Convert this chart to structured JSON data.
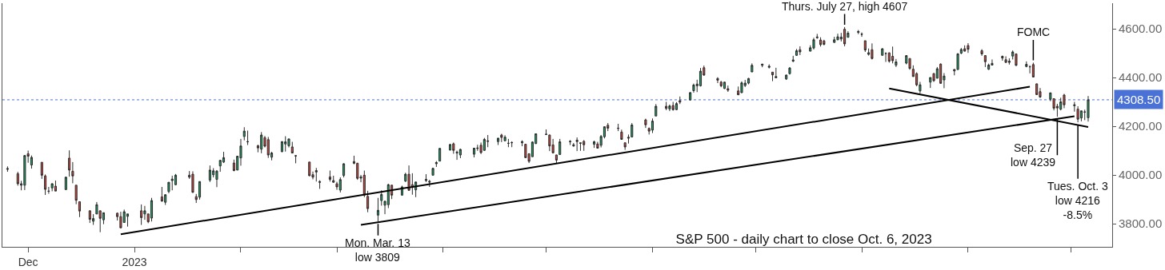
{
  "chart_data": {
    "type": "candlestick",
    "title": "S&P 500 - daily chart to close Oct. 6, 2023",
    "x": [
      "2022-11-25",
      "2022-11-28",
      "2022-11-29",
      "2022-11-30",
      "2022-12-01",
      "2022-12-02",
      "2022-12-05",
      "2022-12-06",
      "2022-12-07",
      "2022-12-08",
      "2022-12-09",
      "2022-12-12",
      "2022-12-13",
      "2022-12-14",
      "2022-12-15",
      "2022-12-16",
      "2022-12-19",
      "2022-12-20",
      "2022-12-21",
      "2022-12-22",
      "2022-12-23",
      "2022-12-27",
      "2022-12-28",
      "2022-12-29",
      "2022-12-30",
      "2023-01-03",
      "2023-01-04",
      "2023-01-05",
      "2023-01-06",
      "2023-01-09",
      "2023-01-10",
      "2023-01-11",
      "2023-01-12",
      "2023-01-13",
      "2023-01-17",
      "2023-01-18",
      "2023-01-19",
      "2023-01-20",
      "2023-01-23",
      "2023-01-24",
      "2023-01-25",
      "2023-01-26",
      "2023-01-27",
      "2023-01-30",
      "2023-01-31",
      "2023-02-01",
      "2023-02-02",
      "2023-02-03",
      "2023-02-06",
      "2023-02-07",
      "2023-02-08",
      "2023-02-09",
      "2023-02-10",
      "2023-02-13",
      "2023-02-14",
      "2023-02-15",
      "2023-02-16",
      "2023-02-17",
      "2023-02-21",
      "2023-02-22",
      "2023-02-23",
      "2023-02-24",
      "2023-02-27",
      "2023-02-28",
      "2023-03-01",
      "2023-03-02",
      "2023-03-03",
      "2023-03-06",
      "2023-03-07",
      "2023-03-08",
      "2023-03-09",
      "2023-03-10",
      "2023-03-13",
      "2023-03-14",
      "2023-03-15",
      "2023-03-16",
      "2023-03-17",
      "2023-03-20",
      "2023-03-21",
      "2023-03-22",
      "2023-03-23",
      "2023-03-24",
      "2023-03-27",
      "2023-03-28",
      "2023-03-29",
      "2023-03-30",
      "2023-03-31",
      "2023-04-03",
      "2023-04-04",
      "2023-04-05",
      "2023-04-06",
      "2023-04-10",
      "2023-04-11",
      "2023-04-12",
      "2023-04-13",
      "2023-04-14",
      "2023-04-17",
      "2023-04-18",
      "2023-04-19",
      "2023-04-20",
      "2023-04-21",
      "2023-04-24",
      "2023-04-25",
      "2023-04-26",
      "2023-04-27",
      "2023-04-28",
      "2023-05-01",
      "2023-05-02",
      "2023-05-03",
      "2023-05-04",
      "2023-05-05",
      "2023-05-08",
      "2023-05-09",
      "2023-05-10",
      "2023-05-11",
      "2023-05-12",
      "2023-05-15",
      "2023-05-16",
      "2023-05-17",
      "2023-05-18",
      "2023-05-19",
      "2023-05-22",
      "2023-05-23",
      "2023-05-24",
      "2023-05-25",
      "2023-05-26",
      "2023-05-30",
      "2023-05-31",
      "2023-06-01",
      "2023-06-02",
      "2023-06-05",
      "2023-06-06",
      "2023-06-07",
      "2023-06-08",
      "2023-06-09",
      "2023-06-12",
      "2023-06-13",
      "2023-06-14",
      "2023-06-15",
      "2023-06-16",
      "2023-06-20",
      "2023-06-21",
      "2023-06-22",
      "2023-06-23",
      "2023-06-26",
      "2023-06-27",
      "2023-06-28",
      "2023-06-29",
      "2023-06-30",
      "2023-07-03",
      "2023-07-05",
      "2023-07-06",
      "2023-07-07",
      "2023-07-10",
      "2023-07-11",
      "2023-07-12",
      "2023-07-13",
      "2023-07-14",
      "2023-07-17",
      "2023-07-18",
      "2023-07-19",
      "2023-07-20",
      "2023-07-21",
      "2023-07-24",
      "2023-07-25",
      "2023-07-26",
      "2023-07-27",
      "2023-07-28",
      "2023-07-31",
      "2023-08-01",
      "2023-08-02",
      "2023-08-03",
      "2023-08-04",
      "2023-08-07",
      "2023-08-08",
      "2023-08-09",
      "2023-08-10",
      "2023-08-11",
      "2023-08-14",
      "2023-08-15",
      "2023-08-16",
      "2023-08-17",
      "2023-08-18",
      "2023-08-21",
      "2023-08-22",
      "2023-08-23",
      "2023-08-24",
      "2023-08-25",
      "2023-08-28",
      "2023-08-29",
      "2023-08-30",
      "2023-08-31",
      "2023-09-01",
      "2023-09-05",
      "2023-09-06",
      "2023-09-07",
      "2023-09-08",
      "2023-09-11",
      "2023-09-12",
      "2023-09-13",
      "2023-09-14",
      "2023-09-15",
      "2023-09-18",
      "2023-09-19",
      "2023-09-20",
      "2023-09-21",
      "2023-09-22",
      "2023-09-25",
      "2023-09-26",
      "2023-09-27",
      "2023-09-28",
      "2023-09-29",
      "2023-10-02",
      "2023-10-03",
      "2023-10-04",
      "2023-10-05",
      "2023-10-06"
    ],
    "ohlc": [
      [
        4023,
        4035,
        4013,
        4026
      ],
      [
        4005,
        4013,
        3956,
        3964
      ],
      [
        3964,
        3976,
        3937,
        3958
      ],
      [
        3958,
        4080,
        3938,
        4080
      ],
      [
        4087,
        4100,
        4050,
        4077
      ],
      [
        4041,
        4080,
        4026,
        4072
      ],
      [
        4052,
        4052,
        3984,
        3999
      ],
      [
        3996,
        4002,
        3918,
        3941
      ],
      [
        3934,
        3951,
        3923,
        3933
      ],
      [
        3947,
        3966,
        3933,
        3964
      ],
      [
        3954,
        3977,
        3934,
        3934
      ],
      [
        3940,
        3991,
        3939,
        3991
      ],
      [
        4069,
        4101,
        3993,
        4020
      ],
      [
        4015,
        4053,
        3966,
        3996
      ],
      [
        3958,
        3958,
        3880,
        3896
      ],
      [
        3890,
        3890,
        3827,
        3852
      ],
      [
        3853,
        3854,
        3803,
        3818
      ],
      [
        3810,
        3839,
        3795,
        3821
      ],
      [
        3840,
        3889,
        3839,
        3878
      ],
      [
        3853,
        3853,
        3765,
        3822
      ],
      [
        3816,
        3845,
        3798,
        3845
      ],
      [
        3843,
        3846,
        3813,
        3829
      ],
      [
        3829,
        3849,
        3783,
        3783
      ],
      [
        3805,
        3858,
        3805,
        3849
      ],
      [
        3830,
        3840,
        3788,
        3840
      ],
      [
        3853,
        3879,
        3795,
        3825
      ],
      [
        3840,
        3873,
        3816,
        3853
      ],
      [
        3840,
        3840,
        3802,
        3808
      ],
      [
        3823,
        3906,
        3809,
        3895
      ],
      [
        3910,
        3951,
        3890,
        3893
      ],
      [
        3888,
        3920,
        3877,
        3919
      ],
      [
        3932,
        3970,
        3925,
        3970
      ],
      [
        3977,
        3997,
        3937,
        3983
      ],
      [
        3960,
        4004,
        3958,
        3999
      ],
      [
        3999,
        4016,
        3984,
        3991
      ],
      [
        4003,
        4015,
        3926,
        3929
      ],
      [
        3911,
        3922,
        3885,
        3899
      ],
      [
        3909,
        3973,
        3899,
        3973
      ],
      [
        3979,
        4039,
        3971,
        4020
      ],
      [
        4001,
        4028,
        3990,
        4017
      ],
      [
        3982,
        4020,
        3950,
        4016
      ],
      [
        4037,
        4061,
        4013,
        4060
      ],
      [
        4053,
        4095,
        4049,
        4071
      ],
      [
        4049,
        4063,
        4015,
        4018
      ],
      [
        4020,
        4077,
        4020,
        4077
      ],
      [
        4070,
        4148,
        4038,
        4119
      ],
      [
        4158,
        4196,
        4142,
        4180
      ],
      [
        4137,
        4182,
        4123,
        4136
      ],
      [
        4120,
        4124,
        4093,
        4111
      ],
      [
        4106,
        4176,
        4089,
        4164
      ],
      [
        4153,
        4160,
        4113,
        4118
      ],
      [
        4145,
        4156,
        4070,
        4082
      ],
      [
        4073,
        4095,
        4060,
        4090
      ],
      [
        4096,
        4138,
        4093,
        4137
      ],
      [
        4127,
        4159,
        4096,
        4136
      ],
      [
        4120,
        4148,
        4113,
        4148
      ],
      [
        4115,
        4136,
        4089,
        4090
      ],
      [
        4078,
        4081,
        4048,
        4079
      ],
      [
        4053,
        4053,
        3995,
        3997
      ],
      [
        4001,
        4014,
        3982,
        3991
      ],
      [
        4018,
        4029,
        3973,
        4012
      ],
      [
        3973,
        3978,
        3943,
        3970
      ],
      [
        3992,
        4018,
        3973,
        3982
      ],
      [
        3977,
        3997,
        3968,
        3970
      ],
      [
        3964,
        3972,
        3939,
        3951
      ],
      [
        3938,
        3990,
        3928,
        3981
      ],
      [
        3998,
        4048,
        3990,
        4046
      ],
      [
        4055,
        4079,
        4044,
        4048
      ],
      [
        4048,
        4050,
        3980,
        3986
      ],
      [
        3987,
        4000,
        3970,
        3992
      ],
      [
        3999,
        4018,
        3909,
        3918
      ],
      [
        3912,
        3935,
        3847,
        3862
      ],
      [
        3835,
        3906,
        3809,
        3855
      ],
      [
        3895,
        3937,
        3874,
        3920
      ],
      [
        3876,
        3894,
        3839,
        3892
      ],
      [
        3878,
        3964,
        3864,
        3960
      ],
      [
        3958,
        3959,
        3901,
        3917
      ],
      [
        3917,
        3956,
        3917,
        3951
      ],
      [
        3975,
        4009,
        3971,
        4003
      ],
      [
        4003,
        4039,
        3936,
        3937
      ],
      [
        3960,
        4007,
        3919,
        3949
      ],
      [
        3939,
        3972,
        3909,
        3971
      ],
      [
        3982,
        4003,
        3971,
        3977
      ],
      [
        3974,
        3980,
        3951,
        3971
      ],
      [
        3999,
        4030,
        3999,
        4027
      ],
      [
        4046,
        4057,
        4033,
        4051
      ],
      [
        4057,
        4110,
        4056,
        4109
      ],
      [
        4102,
        4128,
        4101,
        4125
      ],
      [
        4128,
        4133,
        4087,
        4101
      ],
      [
        4094,
        4100,
        4062,
        4090
      ],
      [
        4082,
        4108,
        4069,
        4105
      ],
      [
        4085,
        4110,
        4072,
        4110
      ],
      [
        4111,
        4124,
        4099,
        4109
      ],
      [
        4122,
        4133,
        4086,
        4092
      ],
      [
        4101,
        4152,
        4099,
        4146
      ],
      [
        4140,
        4164,
        4114,
        4138
      ],
      [
        4137,
        4152,
        4123,
        4151
      ],
      [
        4164,
        4169,
        4135,
        4154
      ],
      [
        4140,
        4163,
        4140,
        4155
      ],
      [
        4130,
        4148,
        4114,
        4130
      ],
      [
        4132,
        4138,
        4114,
        4133
      ],
      [
        4132,
        4142,
        4118,
        4137
      ],
      [
        4126,
        4126,
        4071,
        4071
      ],
      [
        4087,
        4089,
        4049,
        4056
      ],
      [
        4075,
        4138,
        4075,
        4135
      ],
      [
        4129,
        4170,
        4127,
        4169
      ],
      [
        4166,
        4187,
        4164,
        4167
      ],
      [
        4164,
        4165,
        4098,
        4119
      ],
      [
        4123,
        4148,
        4088,
        4091
      ],
      [
        4082,
        4083,
        4048,
        4061
      ],
      [
        4084,
        4148,
        4084,
        4136
      ],
      [
        4136,
        4143,
        4123,
        4138
      ],
      [
        4124,
        4131,
        4116,
        4119
      ],
      [
        4143,
        4154,
        4098,
        4137
      ],
      [
        4132,
        4132,
        4099,
        4130
      ],
      [
        4138,
        4143,
        4099,
        4124
      ],
      [
        4126,
        4141,
        4111,
        4136
      ],
      [
        4127,
        4136,
        4109,
        4110
      ],
      [
        4122,
        4164,
        4113,
        4158
      ],
      [
        4157,
        4199,
        4150,
        4198
      ],
      [
        4204,
        4213,
        4180,
        4192
      ],
      [
        4191,
        4210,
        4180,
        4192
      ],
      [
        4176,
        4186,
        4145,
        4146
      ],
      [
        4132,
        4133,
        4103,
        4115
      ],
      [
        4155,
        4166,
        4129,
        4151
      ],
      [
        4156,
        4213,
        4155,
        4205
      ],
      [
        4226,
        4231,
        4193,
        4206
      ],
      [
        4191,
        4195,
        4166,
        4180
      ],
      [
        4184,
        4232,
        4172,
        4221
      ],
      [
        4242,
        4291,
        4242,
        4282
      ],
      [
        4282,
        4300,
        4266,
        4273
      ],
      [
        4271,
        4289,
        4262,
        4283
      ],
      [
        4285,
        4300,
        4264,
        4268
      ],
      [
        4268,
        4299,
        4266,
        4293
      ],
      [
        4305,
        4322,
        4291,
        4299
      ],
      [
        4308,
        4340,
        4305,
        4338
      ],
      [
        4346,
        4375,
        4338,
        4369
      ],
      [
        4366,
        4391,
        4340,
        4373
      ],
      [
        4366,
        4439,
        4363,
        4426
      ],
      [
        4440,
        4449,
        4407,
        4410
      ],
      [
        4396,
        4401,
        4377,
        4389
      ],
      [
        4381,
        4386,
        4360,
        4366
      ],
      [
        4355,
        4382,
        4353,
        4381
      ],
      [
        4354,
        4367,
        4341,
        4348
      ],
      [
        4345,
        4363,
        4328,
        4329
      ],
      [
        4338,
        4384,
        4336,
        4378
      ],
      [
        4367,
        4390,
        4361,
        4377
      ],
      [
        4377,
        4398,
        4372,
        4396
      ],
      [
        4423,
        4458,
        4422,
        4450
      ],
      [
        4450,
        4456,
        4442,
        4455
      ],
      [
        4442,
        4454,
        4437,
        4446
      ],
      [
        4422,
        4423,
        4385,
        4411
      ],
      [
        4404,
        4440,
        4397,
        4399
      ],
      [
        4394,
        4412,
        4390,
        4410
      ],
      [
        4416,
        4443,
        4412,
        4439
      ],
      [
        4467,
        4489,
        4463,
        4472
      ],
      [
        4491,
        4517,
        4489,
        4510
      ],
      [
        4514,
        4528,
        4492,
        4505
      ],
      [
        4508,
        4532,
        4508,
        4522
      ],
      [
        4521,
        4563,
        4515,
        4555
      ],
      [
        4563,
        4579,
        4559,
        4566
      ],
      [
        4554,
        4565,
        4527,
        4535
      ],
      [
        4550,
        4555,
        4532,
        4536
      ],
      [
        4544,
        4567,
        4542,
        4555
      ],
      [
        4555,
        4580,
        4553,
        4567
      ],
      [
        4558,
        4583,
        4548,
        4566
      ],
      [
        4598,
        4607,
        4528,
        4538
      ],
      [
        4565,
        4590,
        4564,
        4582
      ],
      [
        4585,
        4595,
        4578,
        4589
      ],
      [
        4578,
        4585,
        4567,
        4577
      ],
      [
        4551,
        4551,
        4505,
        4513
      ],
      [
        4495,
        4519,
        4490,
        4502
      ],
      [
        4514,
        4540,
        4474,
        4478
      ],
      [
        4491,
        4520,
        4491,
        4518
      ],
      [
        4499,
        4503,
        4464,
        4499
      ],
      [
        4501,
        4503,
        4461,
        4467
      ],
      [
        4487,
        4527,
        4458,
        4469
      ],
      [
        4451,
        4476,
        4443,
        4464
      ],
      [
        4459,
        4490,
        4454,
        4490
      ],
      [
        4478,
        4478,
        4432,
        4437
      ],
      [
        4434,
        4450,
        4403,
        4404
      ],
      [
        4416,
        4421,
        4364,
        4370
      ],
      [
        4345,
        4382,
        4335,
        4370
      ],
      [
        4381,
        4400,
        4357,
        4400
      ],
      [
        4416,
        4418,
        4382,
        4387
      ],
      [
        4397,
        4443,
        4397,
        4436
      ],
      [
        4455,
        4458,
        4375,
        4376
      ],
      [
        4390,
        4418,
        4356,
        4406
      ],
      [
        4427,
        4434,
        4409,
        4433
      ],
      [
        4433,
        4500,
        4431,
        4497
      ],
      [
        4500,
        4521,
        4496,
        4515
      ],
      [
        4518,
        4532,
        4507,
        4508
      ],
      [
        4531,
        4541,
        4501,
        4516
      ],
      [
        4510,
        4516,
        4489,
        4497
      ],
      [
        4490,
        4491,
        4443,
        4465
      ],
      [
        4434,
        4457,
        4431,
        4451
      ],
      [
        4451,
        4474,
        4451,
        4458
      ],
      [
        4480,
        4490,
        4469,
        4487
      ],
      [
        4473,
        4487,
        4460,
        4462
      ],
      [
        4462,
        4479,
        4453,
        4467
      ],
      [
        4488,
        4511,
        4474,
        4505
      ],
      [
        4497,
        4497,
        4447,
        4450
      ],
      [
        4445,
        4466,
        4442,
        4454
      ],
      [
        4444,
        4450,
        4417,
        4444
      ],
      [
        4453,
        4461,
        4402,
        4402
      ],
      [
        4374,
        4375,
        4329,
        4330
      ],
      [
        4342,
        4357,
        4316,
        4320
      ],
      [
        4311,
        4338,
        4303,
        4337
      ],
      [
        4313,
        4313,
        4265,
        4274
      ],
      [
        4282,
        4292,
        4239,
        4275
      ],
      [
        4270,
        4317,
        4265,
        4300
      ],
      [
        4328,
        4333,
        4274,
        4288
      ],
      [
        4284,
        4300,
        4260,
        4288
      ],
      [
        4270,
        4282,
        4216,
        4229
      ],
      [
        4234,
        4264,
        4220,
        4263
      ],
      [
        4259,
        4268,
        4225,
        4258
      ],
      [
        4235,
        4324,
        4219,
        4308.5
      ]
    ],
    "series": [
      {
        "type": "line",
        "color": "#000000",
        "x": [
          "2022-12-28",
          "2023-09-19"
        ],
        "values": [
          3757,
          4362
        ]
      },
      {
        "type": "line",
        "color": "#000000",
        "x": [
          "2023-03-08",
          "2023-10-02"
        ],
        "values": [
          3795,
          4241
        ]
      },
      {
        "type": "line",
        "color": "#000000",
        "x": [
          "2023-08-09",
          "2023-10-06"
        ],
        "values": [
          4355,
          4197
        ]
      }
    ],
    "ref_lines": [
      {
        "axis": "y",
        "value": 4308.5,
        "label": "4308.50",
        "color": "#4a72d6",
        "line_style": "dotted"
      }
    ],
    "annotations": [
      {
        "text": "Thurs. July 27, high 4607",
        "x": "2023-07-27",
        "y": 4607
      },
      {
        "text": "FOMC",
        "x": "2023-09-20",
        "y": 4461
      },
      {
        "text": "Mon. Mar. 13\nlow 3809",
        "x": "2023-03-13",
        "y": 3809
      },
      {
        "text": "Sep. 27\nlow 4239",
        "x": "2023-09-27",
        "y": 4239
      },
      {
        "text": "Tues. Oct. 3\nlow 4216\n-8.5%",
        "x": "2023-10-03",
        "y": 4216
      }
    ],
    "xlim": [
      "2022-11-23T12:00",
      "2023-10-13"
    ],
    "xticks": [
      {
        "value": "2022-12-01",
        "label": "Dec"
      },
      {
        "value": "2023-01-01",
        "label": "2023"
      },
      {
        "value": "2023-02-01",
        "label": null
      },
      {
        "value": "2023-03-01",
        "label": null
      },
      {
        "value": "2023-04-01",
        "label": null
      },
      {
        "value": "2023-05-01",
        "label": null
      },
      {
        "value": "2023-06-01",
        "label": null
      },
      {
        "value": "2023-07-01",
        "label": null
      },
      {
        "value": "2023-08-01",
        "label": null
      },
      {
        "value": "2023-09-01",
        "label": null
      },
      {
        "value": "2023-10-01",
        "label": null
      }
    ],
    "ylim": [
      3705,
      4705
    ],
    "yticks": [
      {
        "value": 3800,
        "label": "3800.00"
      },
      {
        "value": 4000,
        "label": "4000.00"
      },
      {
        "value": 4200,
        "label": "4200.00"
      },
      {
        "value": 4400,
        "label": "4400.00"
      },
      {
        "value": 4600,
        "label": "4600.00"
      }
    ],
    "grid": false
  }
}
